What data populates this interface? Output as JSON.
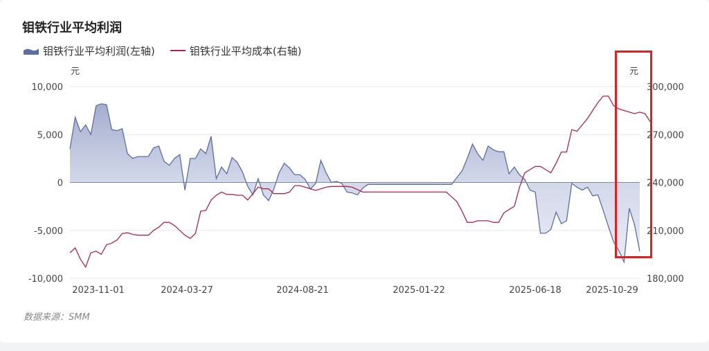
{
  "title": "钼铁行业平均利润",
  "legend": {
    "profit": "钼铁行业平均利润(左轴)",
    "cost": "钼铁行业平均成本(右轴)"
  },
  "units": {
    "left": "元",
    "right": "元"
  },
  "source": "数据来源：SMM",
  "colors": {
    "profit_line": "#5b6ea3",
    "profit_fill_top": "#9aa4c8",
    "profit_fill_bottom": "#eef0f7",
    "cost_line": "#b0244a",
    "grid": "#e6e6e6",
    "zero_line": "#7b86ad",
    "highlight": "#e02020"
  },
  "chart_data": {
    "type": "line",
    "x_ticks": [
      "2023-11-01",
      "2024-03-27",
      "2024-08-21",
      "2025-01-22",
      "2025-06-18",
      "2025-10-29"
    ],
    "y_left": {
      "ticks": [
        "10,000",
        "5,000",
        "0",
        "-5,000",
        "-10,000"
      ],
      "ylim": [
        -10000,
        10000
      ]
    },
    "y_right": {
      "ticks": [
        "300,000",
        "270,000",
        "240,000",
        "210,000",
        "180,000"
      ],
      "ylim": [
        180000,
        300000
      ]
    },
    "grid": true,
    "legend_position": "top-left",
    "series": [
      {
        "name": "钼铁行业平均利润(左轴)",
        "axis": "left",
        "style": "area",
        "values": [
          3500,
          6800,
          5300,
          6000,
          5000,
          8000,
          8200,
          8100,
          5500,
          5400,
          5600,
          3000,
          2500,
          2700,
          2700,
          2700,
          3600,
          3800,
          2200,
          1800,
          2500,
          2900,
          -800,
          2500,
          2500,
          3500,
          3000,
          4800,
          400,
          1600,
          900,
          2600,
          2100,
          1100,
          -400,
          -1300,
          400,
          -1300,
          -1900,
          -700,
          1000,
          2000,
          1500,
          800,
          800,
          300,
          -700,
          -100,
          2300,
          1000,
          0,
          100,
          -100,
          -1000,
          -1100,
          -1300,
          -600,
          -200,
          -200,
          -200,
          -200,
          -200,
          -200,
          -200,
          -200,
          -200,
          -200,
          -200,
          -200,
          -200,
          -200,
          -200,
          -200,
          -200,
          500,
          1200,
          2500,
          4000,
          3000,
          2300,
          3800,
          3400,
          3200,
          3200,
          900,
          1600,
          800,
          300,
          -800,
          -1000,
          -5300,
          -5300,
          -4900,
          -3100,
          -4300,
          -4000,
          -100,
          -500,
          -800,
          -500,
          -1400,
          -1300,
          -2900,
          -4600,
          -6200,
          -7100,
          -8300,
          -2700,
          -4400,
          -7200
        ]
      },
      {
        "name": "钼铁行业平均成本(右轴)",
        "axis": "right",
        "style": "line",
        "values": [
          196000,
          199000,
          192000,
          187000,
          196000,
          197000,
          195000,
          201000,
          202000,
          204000,
          208000,
          208500,
          207500,
          207000,
          207000,
          207000,
          210000,
          212000,
          215000,
          215000,
          213000,
          210000,
          207000,
          205000,
          208000,
          222000,
          222500,
          229000,
          232000,
          234000,
          232500,
          232500,
          232000,
          232000,
          229000,
          233000,
          237000,
          236000,
          236000,
          233000,
          233000,
          233000,
          234000,
          238000,
          238000,
          237000,
          236000,
          235000,
          236000,
          237000,
          237500,
          237500,
          237500,
          237500,
          237000,
          235500,
          234000,
          234000,
          234000,
          234000,
          234000,
          234000,
          234000,
          234000,
          234000,
          234000,
          234000,
          234000,
          234000,
          234000,
          234000,
          234000,
          234000,
          231000,
          228000,
          222000,
          215000,
          215000,
          216000,
          216000,
          216000,
          215000,
          215000,
          221000,
          223000,
          225000,
          237000,
          246000,
          248000,
          250000,
          250000,
          248000,
          246000,
          252000,
          259000,
          259000,
          273000,
          272000,
          276000,
          280000,
          285000,
          290000,
          294000,
          294000,
          288000,
          286000,
          285000,
          284000,
          283000,
          284000,
          283000,
          278000
        ]
      }
    ]
  }
}
